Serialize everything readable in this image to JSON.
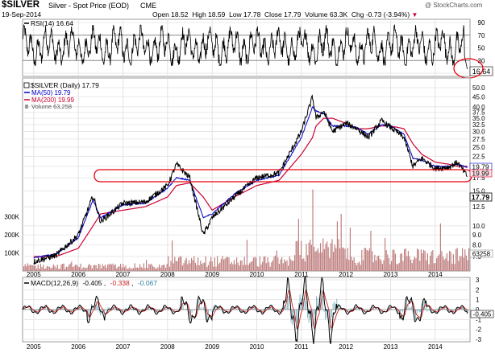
{
  "header": {
    "symbol": "$SILVER",
    "name": "Silver - Spot Price (EOD)",
    "exchange": "CME",
    "date": "19-Sep-2014",
    "open_label": "Open",
    "open": "18.52",
    "high_label": "High",
    "high": "18.59",
    "low_label": "Low",
    "low": "17.78",
    "close_label": "Close",
    "close": "17.79",
    "volume_label": "Volume",
    "volume": "63.3K",
    "chg_label": "Chg",
    "chg": "-0.73 (-3.94%)",
    "chg_arrow": "▼",
    "watermark": "@ StockCharts.com"
  },
  "rsi_panel": {
    "label": "RSI(14) 16.64",
    "ticks": [
      "90",
      "70",
      "50",
      "30",
      "10"
    ],
    "last_value": "16.64"
  },
  "price_panel": {
    "legend": [
      {
        "text": "$SILVER (Daily) 17.79",
        "color": "#000000"
      },
      {
        "text": "MA(50) 19.79",
        "color": "#0000cc"
      },
      {
        "text": "MA(200) 19.99",
        "color": "#cc0033"
      },
      {
        "text": "Volume 63,258",
        "color": "#555555"
      }
    ],
    "right_ticks": [
      "50.0",
      "45.0",
      "40.0",
      "37.5",
      "35.0",
      "32.5",
      "30.0",
      "27.5",
      "25.0",
      "22.5",
      "20.0",
      "17.5",
      "15.0",
      "12.5",
      "10.0",
      "9.0",
      "8.0",
      "7.0"
    ],
    "volume_ticks": [
      "300K",
      "200K",
      "100K"
    ],
    "badges": [
      "19.79",
      "19.99",
      "17.79"
    ],
    "volume_badge": "63258"
  },
  "x_axis_labels": [
    "2005",
    "2006",
    "2007",
    "2008",
    "2009",
    "2010",
    "2011",
    "2012",
    "2013",
    "2014"
  ],
  "macd_panel": {
    "label_prefix": "MACD(12,26,9)",
    "macd": "-0.405",
    "signal": "-0.338",
    "hist": "-0.067",
    "ticks": [
      "3",
      "2",
      "1",
      "0",
      "-1",
      "-2",
      "-3"
    ],
    "last_value": "-0.405"
  },
  "colors": {
    "price": "#000000",
    "ma50": "#0000cc",
    "ma200": "#cc0033",
    "volume": "#c08080",
    "annotation": "#e8000d",
    "signal": "#cc2222",
    "macd_hist": "#4a90a4",
    "grid": "#d9d9d9"
  },
  "chart_data": [
    {
      "type": "line",
      "title": "RSI(14) 16.64",
      "ylim": [
        10,
        90
      ],
      "series": [
        {
          "name": "RSI(14)",
          "values": [
            16.64
          ]
        }
      ]
    },
    {
      "type": "line",
      "title": "$SILVER (Daily) 17.79",
      "scale": "log",
      "ylim": [
        7,
        50
      ],
      "x": [
        2005.0,
        2005.5,
        2006.0,
        2006.33,
        2006.5,
        2007.0,
        2007.5,
        2008.0,
        2008.2,
        2008.5,
        2008.8,
        2009.0,
        2009.5,
        2010.0,
        2010.5,
        2011.0,
        2011.25,
        2011.33,
        2011.5,
        2011.7,
        2012.0,
        2012.25,
        2012.5,
        2012.8,
        2013.0,
        2013.3,
        2013.5,
        2013.7,
        2014.0,
        2014.3,
        2014.5,
        2014.72
      ],
      "series": [
        {
          "name": "$SILVER",
          "values": [
            6.6,
            7.1,
            9.0,
            14.2,
            10.5,
            13.0,
            13.2,
            16.0,
            20.5,
            17.5,
            9.0,
            11.0,
            14.0,
            17.5,
            18.5,
            30.0,
            45.0,
            35.0,
            38.0,
            30.0,
            33.0,
            31.0,
            28.0,
            34.0,
            31.5,
            28.0,
            20.0,
            22.0,
            19.5,
            19.8,
            21.0,
            17.79
          ]
        },
        {
          "name": "MA(50)",
          "values": [
            6.9,
            7.2,
            8.7,
            13.5,
            11.0,
            12.8,
            13.0,
            15.5,
            17.5,
            17.0,
            11.0,
            11.5,
            14.5,
            17.0,
            18.0,
            28.0,
            40.0,
            38.0,
            37.0,
            32.0,
            32.0,
            31.5,
            29.0,
            32.5,
            32.0,
            29.0,
            22.0,
            21.5,
            20.0,
            20.0,
            20.5,
            19.79
          ]
        },
        {
          "name": "MA(200)",
          "values": [
            7.0,
            7.0,
            7.7,
            10.0,
            11.5,
            12.0,
            12.5,
            14.0,
            16.0,
            16.5,
            14.0,
            12.0,
            14.0,
            16.0,
            17.0,
            23.0,
            28.0,
            32.0,
            35.0,
            35.0,
            33.0,
            31.0,
            31.0,
            32.0,
            32.0,
            31.0,
            26.0,
            23.0,
            21.0,
            20.5,
            20.0,
            19.99
          ]
        }
      ]
    },
    {
      "type": "line",
      "title": "MACD(12,26,9)",
      "ylim": [
        -3,
        3
      ],
      "series": [
        {
          "name": "MACD",
          "values": [
            -0.405
          ]
        },
        {
          "name": "Signal",
          "values": [
            -0.338
          ]
        },
        {
          "name": "Histogram",
          "values": [
            -0.067
          ]
        }
      ]
    }
  ]
}
